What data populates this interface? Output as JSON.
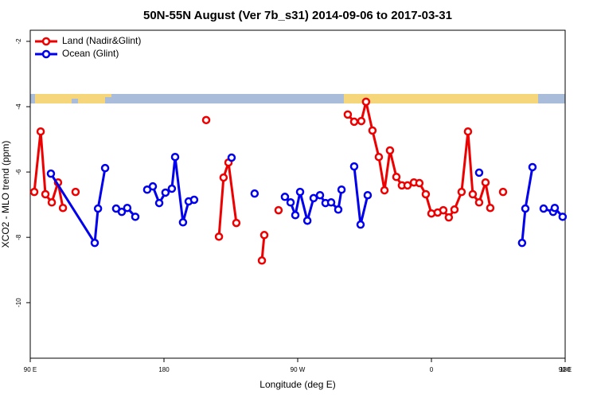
{
  "chart_data": {
    "type": "line",
    "title": "50N-55N August (Ver 7b_s31)   2014-09-06 to 2017-03-31",
    "x_label": "Longitude (deg E)",
    "y_label": "XCO2 - MLO trend (ppm)",
    "xlim": [
      90,
      450
    ],
    "ylim": [
      -11.7,
      -1.66
    ],
    "xticks": [
      {
        "value": 90,
        "label": "90 E"
      },
      {
        "value": 180,
        "label": "180"
      },
      {
        "value": 270,
        "label": "90 W"
      },
      {
        "value": 360,
        "label": "0"
      },
      {
        "value": 450,
        "label": "90 E"
      },
      {
        "value": 540,
        "label": "180"
      }
    ],
    "yticks": [
      -2,
      -4,
      -6,
      -8,
      -10
    ],
    "legend": "top-left",
    "series": [
      {
        "name": "Land (Nadir&Glint)",
        "color": "#ee0000",
        "x": [
          92.7,
          97,
          100.2,
          104.5,
          108.7,
          112,
          null,
          120.5,
          null,
          208.4,
          null,
          217,
          220.1,
          223.4,
          228.7,
          null,
          245.9,
          247.5,
          null,
          257.1,
          null,
          303.7,
          308,
          312.8,
          316,
          320.3,
          324.6,
          328.4,
          332.1,
          336.4,
          340.1,
          343.9,
          348.2,
          351.9,
          356.2,
          360,
          364.2,
          368,
          371.7,
          375.5,
          380.3,
          384.6,
          387.8,
          392.1,
          396.4,
          399.6,
          null,
          408.2
        ],
        "values": [
          -6.61,
          -4.76,
          -6.68,
          -6.93,
          -6.32,
          -7.1,
          null,
          -6.61,
          null,
          -4.41,
          null,
          -7.98,
          -6.17,
          -5.71,
          -7.56,
          null,
          -8.71,
          -7.93,
          null,
          -7.17,
          null,
          -4.24,
          -4.46,
          -4.44,
          -3.85,
          -4.73,
          -5.54,
          -6.56,
          -5.34,
          -6.15,
          -6.41,
          -6.41,
          -6.32,
          -6.34,
          -6.68,
          -7.27,
          -7.24,
          -7.17,
          -7.39,
          -7.15,
          -6.61,
          -4.76,
          -6.68,
          -6.93,
          -6.32,
          -7.1,
          null,
          -6.61
        ]
      },
      {
        "name": "Ocean (Glint)",
        "color": "#0000ee",
        "x": [
          103.9,
          133.4,
          135.6,
          140.4,
          null,
          147.8,
          151.6,
          155.3,
          160.7,
          null,
          168.7,
          172.5,
          176.8,
          181,
          185.3,
          187.5,
          192.8,
          196.6,
          200.3,
          null,
          225.5,
          null,
          241,
          null,
          261.4,
          265.2,
          268.4,
          271.6,
          276.5,
          280.7,
          285,
          288.7,
          292.5,
          297.3,
          299.5,
          null,
          308,
          312.3,
          317.1,
          null,
          392.1,
          null,
          421,
          423.2,
          428,
          null,
          435.5,
          441.9,
          443,
          448.3
        ],
        "values": [
          -6.05,
          -8.17,
          -7.12,
          -5.88,
          null,
          -7.12,
          -7.22,
          -7.1,
          -7.37,
          null,
          -6.54,
          -6.44,
          -6.95,
          -6.63,
          -6.51,
          -5.54,
          -7.54,
          -6.9,
          -6.85,
          null,
          -5.56,
          null,
          -6.66,
          null,
          -6.76,
          -6.93,
          -7.32,
          -6.61,
          -7.49,
          -6.8,
          -6.71,
          -6.95,
          -6.93,
          -7.15,
          -6.54,
          null,
          -5.83,
          -7.61,
          -6.71,
          null,
          -6.02,
          null,
          -8.17,
          -7.12,
          -5.85,
          null,
          -7.12,
          -7.22,
          -7.1,
          -7.37
        ]
      }
    ]
  }
}
